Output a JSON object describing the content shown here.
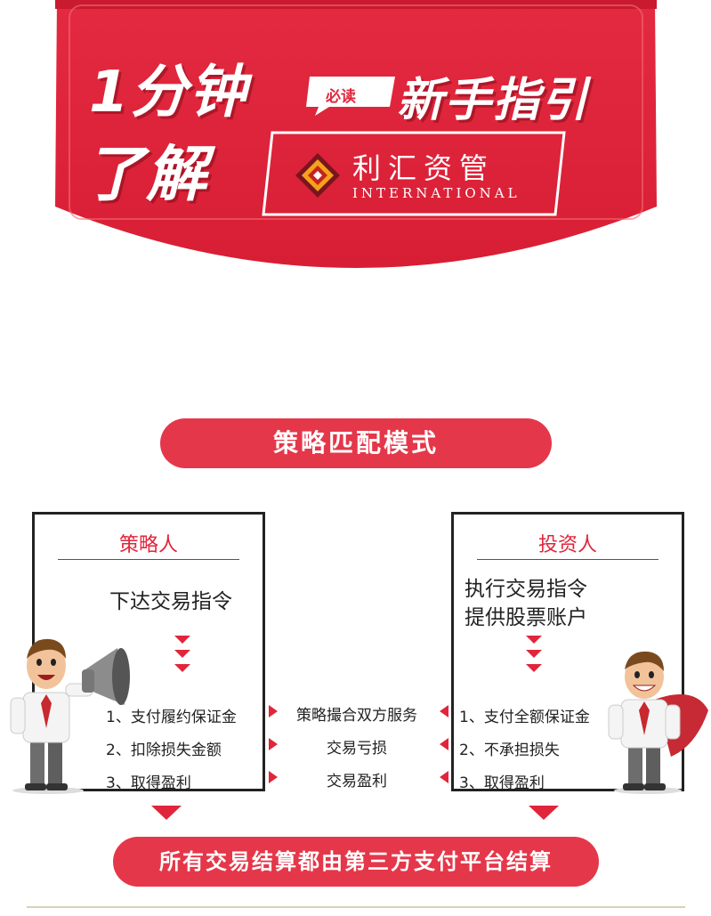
{
  "banner": {
    "line1": "1分钟",
    "bubble": "必读",
    "guide": "新手指引",
    "line2": "了解",
    "brand_cn": "利汇资管",
    "brand_en": "INTERNATIONAL",
    "color": "#e1253b"
  },
  "mode_title": "策略匹配模式",
  "strategist": {
    "title": "策略人",
    "desc": [
      "下达交易指令"
    ],
    "items": [
      "1、支付履约保证金",
      "2、扣除损失金额",
      "3、取得盈利"
    ]
  },
  "investor": {
    "title": "投资人",
    "desc": [
      "执行交易指令",
      "提供股票账户"
    ],
    "items": [
      "1、支付全额保证金",
      "2、不承担损失",
      "3、取得盈利"
    ]
  },
  "middle": [
    "策略撮合双方服务",
    "交易亏损",
    "交易盈利"
  ],
  "settlement": "所有交易结算都由第三方支付平台结算",
  "colors": {
    "accent": "#e1253b",
    "pill": "#e5374a"
  },
  "icons": [
    "megaphone-icon",
    "brand-logo-icon"
  ]
}
